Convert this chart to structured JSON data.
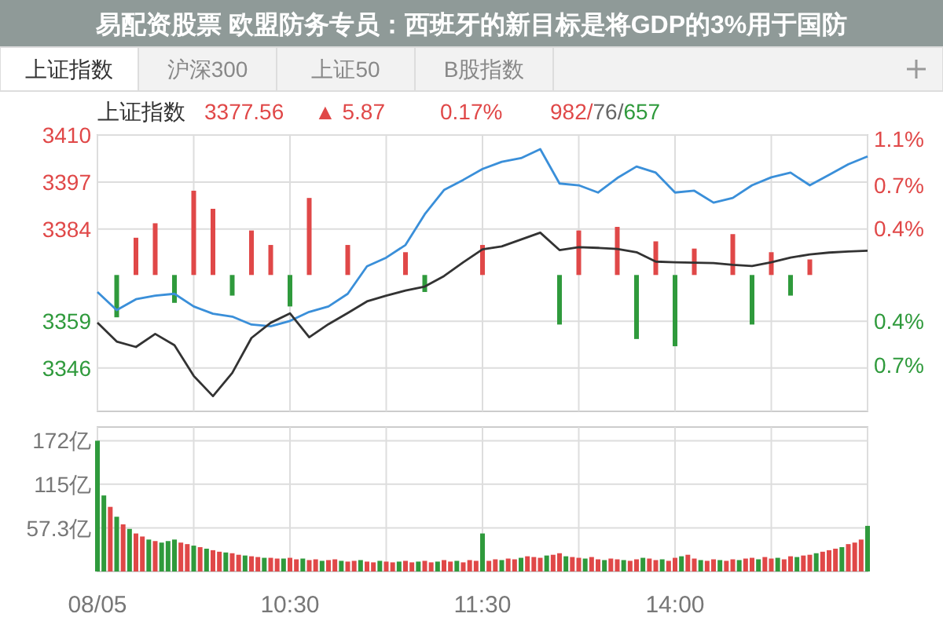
{
  "chart_data": [
    {
      "type": "line",
      "title": "易配资股票 欧盟防务专员：西班牙的新目标是将GDP的3%用于国防",
      "annotations": [
        "上证指数",
        "沪深300",
        "上证50",
        "B股指数",
        "上证指数",
        "3377.56",
        "▲ 5.87",
        "0.17%",
        "982/76/657"
      ],
      "categories": [
        null,
        null,
        null,
        null,
        null,
        null,
        null,
        null,
        null,
        null,
        null,
        null,
        null,
        null,
        null,
        null,
        null,
        null,
        null,
        null,
        null,
        null,
        null,
        null,
        null,
        null,
        null,
        null,
        null,
        null,
        null,
        null,
        null,
        null,
        null,
        null,
        null,
        null,
        null,
        null,
        null
      ],
      "ylim": [
        3334,
        3410.4
      ],
      "yticks": [
        {
          "value": 3410.4,
          "label": "3410"
        },
        {
          "value": 3397.4,
          "label": "3397"
        },
        {
          "value": 3384.4,
          "label": "3384"
        },
        {
          "value": 3358.9,
          "label": "3359"
        },
        {
          "value": 3346,
          "label": "3346"
        }
      ],
      "y2lim": [
        -1.12,
        1.15
      ],
      "y2ticks": [
        {
          "value": 1.12,
          "label": "1.1%"
        },
        {
          "value": 0.74,
          "label": "0.7%"
        },
        {
          "value": 0.38,
          "label": "0.4%"
        },
        {
          "value": -0.38,
          "label": "0.4%"
        },
        {
          "value": -0.74,
          "label": "0.7%"
        }
      ],
      "grid": true,
      "series": [
        {
          "type": "bar",
          "values": [
            null,
            -11.7,
            10.3,
            14.3,
            -7.7,
            23.3,
            18.3,
            -5.7,
            12.3,
            8.3,
            -8.7,
            21.3,
            null,
            8.3,
            null,
            null,
            6.3,
            -4.7,
            null,
            null,
            8.3,
            null,
            null,
            null,
            -13.7,
            12.3,
            null,
            13.3,
            -17.7,
            9.3,
            -19.7,
            7.3,
            null,
            11.3,
            -13.7,
            6.3,
            -5.7,
            4.3,
            null,
            null,
            null
          ],
          "colors": [
            null,
            "#2f9a3c",
            "#e04848",
            "#e04848",
            "#2f9a3c",
            "#e04848",
            "#e04848",
            "#2f9a3c",
            "#e04848",
            "#e04848",
            "#2f9a3c",
            "#e04848",
            null,
            "#e04848",
            null,
            null,
            "#e04848",
            "#2f9a3c",
            null,
            null,
            "#e04848",
            null,
            null,
            null,
            "#2f9a3c",
            "#e04848",
            null,
            "#e04848",
            "#2f9a3c",
            "#e04848",
            "#2f9a3c",
            "#e04848",
            null,
            "#e04848",
            "#2f9a3c",
            "#e04848",
            "#2f9a3c",
            "#e04848",
            null,
            null,
            null
          ],
          "base": [
            null,
            3371.7,
            3371.7,
            3371.7,
            3371.7,
            3371.7,
            3371.7,
            3371.7,
            3371.7,
            3371.7,
            3371.7,
            3371.7,
            null,
            3371.7,
            null,
            null,
            3371.7,
            3371.7,
            null,
            null,
            3371.7,
            null,
            null,
            null,
            3371.7,
            3371.7,
            null,
            3371.7,
            3371.7,
            3371.7,
            3371.7,
            3371.7,
            null,
            3371.7,
            3371.7,
            3371.7,
            3371.7,
            3371.7,
            null,
            null,
            null
          ]
        },
        {
          "color": "#3a8fd9",
          "values": [
            3367,
            3362,
            3365,
            3366,
            3366.5,
            3363,
            3361,
            3360.2,
            3358,
            3357.5,
            3359,
            3361.5,
            3363,
            3366.5,
            3374.1,
            3376.5,
            3380,
            3388.5,
            3395.2,
            3398,
            3401,
            3403,
            3404,
            3406.5,
            3397,
            3396.5,
            3394.5,
            3398.5,
            3401.7,
            3400,
            3394.5,
            3395,
            3391.7,
            3393,
            3396.5,
            3398.7,
            3400,
            3396.5,
            3399.4,
            3402.3,
            3404.5
          ]
        },
        {
          "color": "#333333",
          "values": [
            3358.5,
            3353.3,
            3351.8,
            3355.4,
            3352.3,
            3343.8,
            3338.2,
            3344.6,
            3354.3,
            3358.5,
            3361.1,
            3354.5,
            3358.1,
            3361.2,
            3364.4,
            3366,
            3367.4,
            3368.5,
            3371.4,
            3375.2,
            3378.8,
            3379.6,
            3381.5,
            3383.4,
            3378.6,
            3379.4,
            3379.2,
            3378.9,
            3378,
            3375.4,
            3375.2,
            3375.1,
            3375,
            3374.5,
            3374.2,
            3375.2,
            3376.5,
            3377.4,
            3377.9,
            3378.2,
            3378.4
          ]
        }
      ]
    },
    {
      "type": "bar",
      "categories": [
        "08/05",
        null,
        null,
        null,
        null,
        null,
        null,
        null,
        null,
        null,
        null,
        null,
        null,
        null,
        null,
        null,
        null,
        null,
        null,
        null,
        null,
        null,
        null,
        null,
        null,
        null,
        null,
        null,
        null,
        null,
        "10:30",
        null,
        null,
        null,
        null,
        null,
        null,
        null,
        null,
        null,
        null,
        null,
        null,
        null,
        null,
        null,
        null,
        null,
        null,
        null,
        null,
        null,
        null,
        null,
        null,
        null,
        null,
        null,
        null,
        null,
        "11:30",
        null,
        null,
        null,
        null,
        null,
        null,
        null,
        null,
        null,
        null,
        null,
        null,
        null,
        null,
        null,
        null,
        null,
        null,
        null,
        null,
        null,
        null,
        null,
        null,
        null,
        null,
        null,
        null,
        null,
        "14:00",
        null,
        null,
        null,
        null,
        null,
        null,
        null,
        null,
        null,
        null,
        null,
        null,
        null,
        null,
        null,
        null,
        null,
        null,
        null,
        null,
        null,
        null,
        null,
        null,
        null,
        null,
        null,
        null,
        null,
        null
      ],
      "ylim": [
        0,
        190
      ],
      "yticks": [
        {
          "value": 57.3,
          "label": "57.3亿"
        },
        {
          "value": 115,
          "label": "115亿"
        },
        {
          "value": 172,
          "label": "172亿"
        }
      ],
      "grid": true,
      "series": [
        {
          "values": [
            172,
            100,
            85,
            72,
            62,
            56,
            50,
            46,
            42,
            40,
            38,
            40,
            42,
            38,
            36,
            34,
            32,
            30,
            28,
            26,
            25,
            24,
            22,
            21,
            20,
            19,
            18,
            18,
            17,
            17,
            18,
            16,
            17,
            15,
            16,
            14,
            15,
            16,
            14,
            13,
            14,
            15,
            13,
            12,
            14,
            13,
            12,
            13,
            14,
            12,
            13,
            14,
            12,
            13,
            15,
            13,
            14,
            12,
            15,
            14,
            50,
            14,
            16,
            15,
            17,
            16,
            18,
            20,
            19,
            18,
            21,
            22,
            24,
            20,
            19,
            18,
            17,
            19,
            16,
            15,
            17,
            16,
            15,
            14,
            16,
            18,
            17,
            15,
            16,
            14,
            18,
            20,
            22,
            17,
            15,
            14,
            16,
            15,
            14,
            16,
            15,
            17,
            18,
            16,
            19,
            17,
            18,
            16,
            20,
            19,
            21,
            22,
            24,
            26,
            28,
            30,
            32,
            36,
            38,
            42,
            60
          ],
          "colors": [
            "#2f9a3c",
            "#2f9a3c",
            "#e04848",
            "#2f9a3c",
            "#e04848",
            "#2f9a3c",
            "#e04848",
            "#e04848",
            "#2f9a3c",
            "#e04848",
            "#2f9a3c",
            "#2f9a3c",
            "#2f9a3c",
            "#e04848",
            "#e04848",
            "#2f9a3c",
            "#e04848",
            "#2f9a3c",
            "#e04848",
            "#e04848",
            "#2f9a3c",
            "#e04848",
            "#e04848",
            "#2f9a3c",
            "#e04848",
            "#e04848",
            "#2f9a3c",
            "#e04848",
            "#e04848",
            "#2f9a3c",
            "#e04848",
            "#e04848",
            "#2f9a3c",
            "#e04848",
            "#e04848",
            "#2f9a3c",
            "#e04848",
            "#e04848",
            "#2f9a3c",
            "#e04848",
            "#e04848",
            "#2f9a3c",
            "#e04848",
            "#e04848",
            "#2f9a3c",
            "#e04848",
            "#e04848",
            "#2f9a3c",
            "#e04848",
            "#e04848",
            "#2f9a3c",
            "#e04848",
            "#e04848",
            "#2f9a3c",
            "#e04848",
            "#e04848",
            "#2f9a3c",
            "#e04848",
            "#e04848",
            "#e04848",
            "#2f9a3c",
            "#e04848",
            "#e04848",
            "#2f9a3c",
            "#e04848",
            "#e04848",
            "#2f9a3c",
            "#e04848",
            "#e04848",
            "#e04848",
            "#2f9a3c",
            "#e04848",
            "#e04848",
            "#2f9a3c",
            "#e04848",
            "#e04848",
            "#2f9a3c",
            "#e04848",
            "#e04848",
            "#2f9a3c",
            "#e04848",
            "#e04848",
            "#2f9a3c",
            "#e04848",
            "#e04848",
            "#2f9a3c",
            "#e04848",
            "#e04848",
            "#2f9a3c",
            "#e04848",
            "#e04848",
            "#2f9a3c",
            "#e04848",
            "#e04848",
            "#2f9a3c",
            "#e04848",
            "#e04848",
            "#2f9a3c",
            "#e04848",
            "#e04848",
            "#2f9a3c",
            "#e04848",
            "#e04848",
            "#2f9a3c",
            "#e04848",
            "#e04848",
            "#2f9a3c",
            "#e04848",
            "#e04848",
            "#2f9a3c",
            "#e04848",
            "#e04848",
            "#2f9a3c",
            "#e04848",
            "#e04848",
            "#e04848",
            "#2f9a3c",
            "#e04848",
            "#e04848",
            "#e04848",
            "#2f9a3c"
          ]
        }
      ]
    }
  ]
}
